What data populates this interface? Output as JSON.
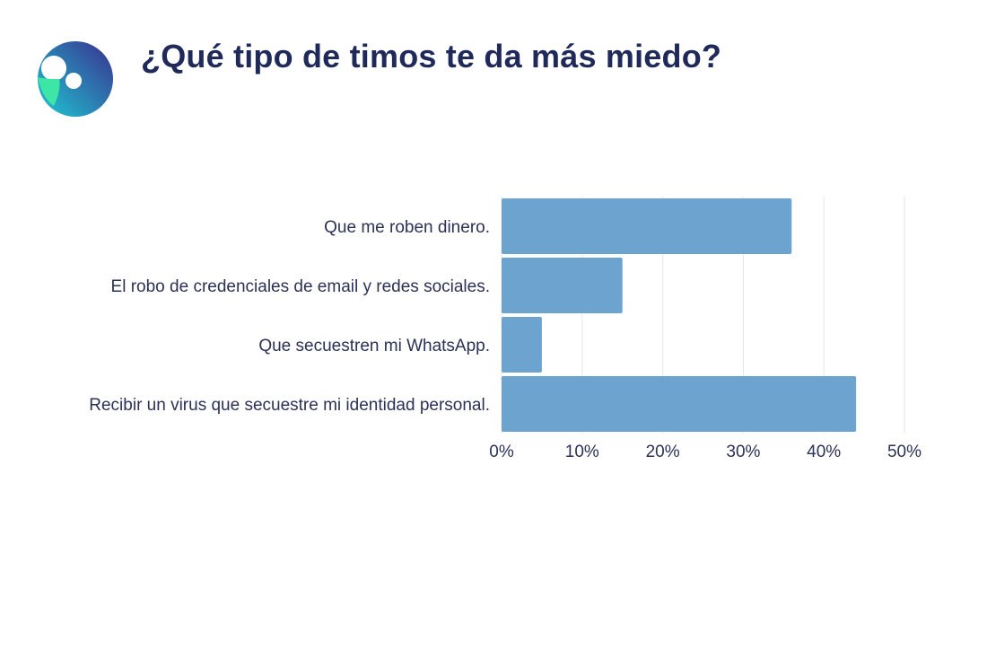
{
  "header": {
    "title": "¿Qué tipo de timos te da más miedo?",
    "logo_icon": "brand-logo-icon"
  },
  "colors": {
    "title": "#1f2a5a",
    "bar": "#6ca4cf",
    "gridline": "#e6e6e6",
    "text": "#2b3157",
    "logo_gradient_start": "#1ec8d2",
    "logo_gradient_end": "#3a2f8f",
    "logo_leaf": "#3ee6a6"
  },
  "chart_data": {
    "type": "bar",
    "orientation": "horizontal",
    "title": "",
    "xlabel": "",
    "ylabel": "",
    "categories": [
      "Que me roben dinero.",
      "El robo de credenciales de email y redes sociales.",
      "Que secuestren mi WhatsApp.",
      "Recibir un virus que secuestre mi identidad personal."
    ],
    "values": [
      36,
      15,
      5,
      44
    ],
    "value_unit": "%",
    "xlim": [
      0,
      50
    ],
    "xticks": [
      "0%",
      "10%",
      "20%",
      "30%",
      "40%",
      "50%"
    ],
    "grid": true,
    "legend": "none"
  }
}
